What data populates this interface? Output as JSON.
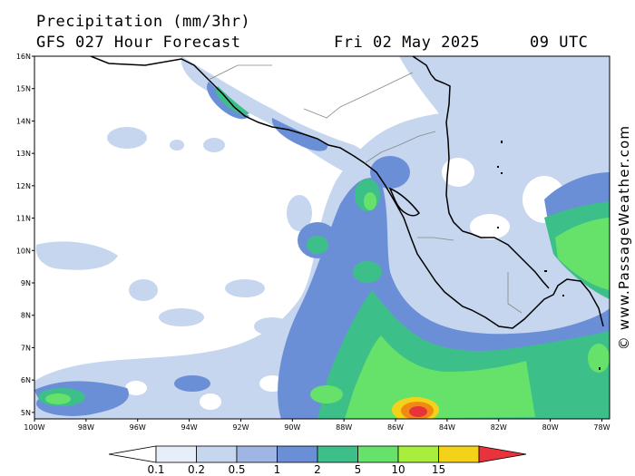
{
  "header": {
    "title": "Precipitation (mm/3hr)",
    "model": "GFS 027 Hour Forecast",
    "date": "Fri 02 May 2025",
    "time": "09 UTC"
  },
  "credit": "© www.PassageWeather.com",
  "map": {
    "lat_labels": [
      "16N",
      "15N",
      "14N",
      "13N",
      "12N",
      "11N",
      "10N",
      "9N",
      "8N",
      "7N",
      "6N",
      "5N"
    ],
    "lon_labels": [
      "100W",
      "98W",
      "96W",
      "94W",
      "92W",
      "90W",
      "88W",
      "86W",
      "84W",
      "82W",
      "80W",
      "78W"
    ],
    "extent": {
      "lon_min": -100,
      "lon_max": -77.7,
      "lat_min": 4.8,
      "lat_max": 16
    }
  },
  "colorbar": {
    "labels": [
      "0.1",
      "0.2",
      "0.5",
      "1",
      "2",
      "5",
      "10",
      "15"
    ],
    "colors": [
      "#ffffff",
      "#e6eef9",
      "#c6d6ef",
      "#9fb5e3",
      "#6b8fd6",
      "#3dbf8a",
      "#66e26a",
      "#a7ef3c",
      "#f5d21a",
      "#f08a14",
      "#e8323c"
    ]
  }
}
